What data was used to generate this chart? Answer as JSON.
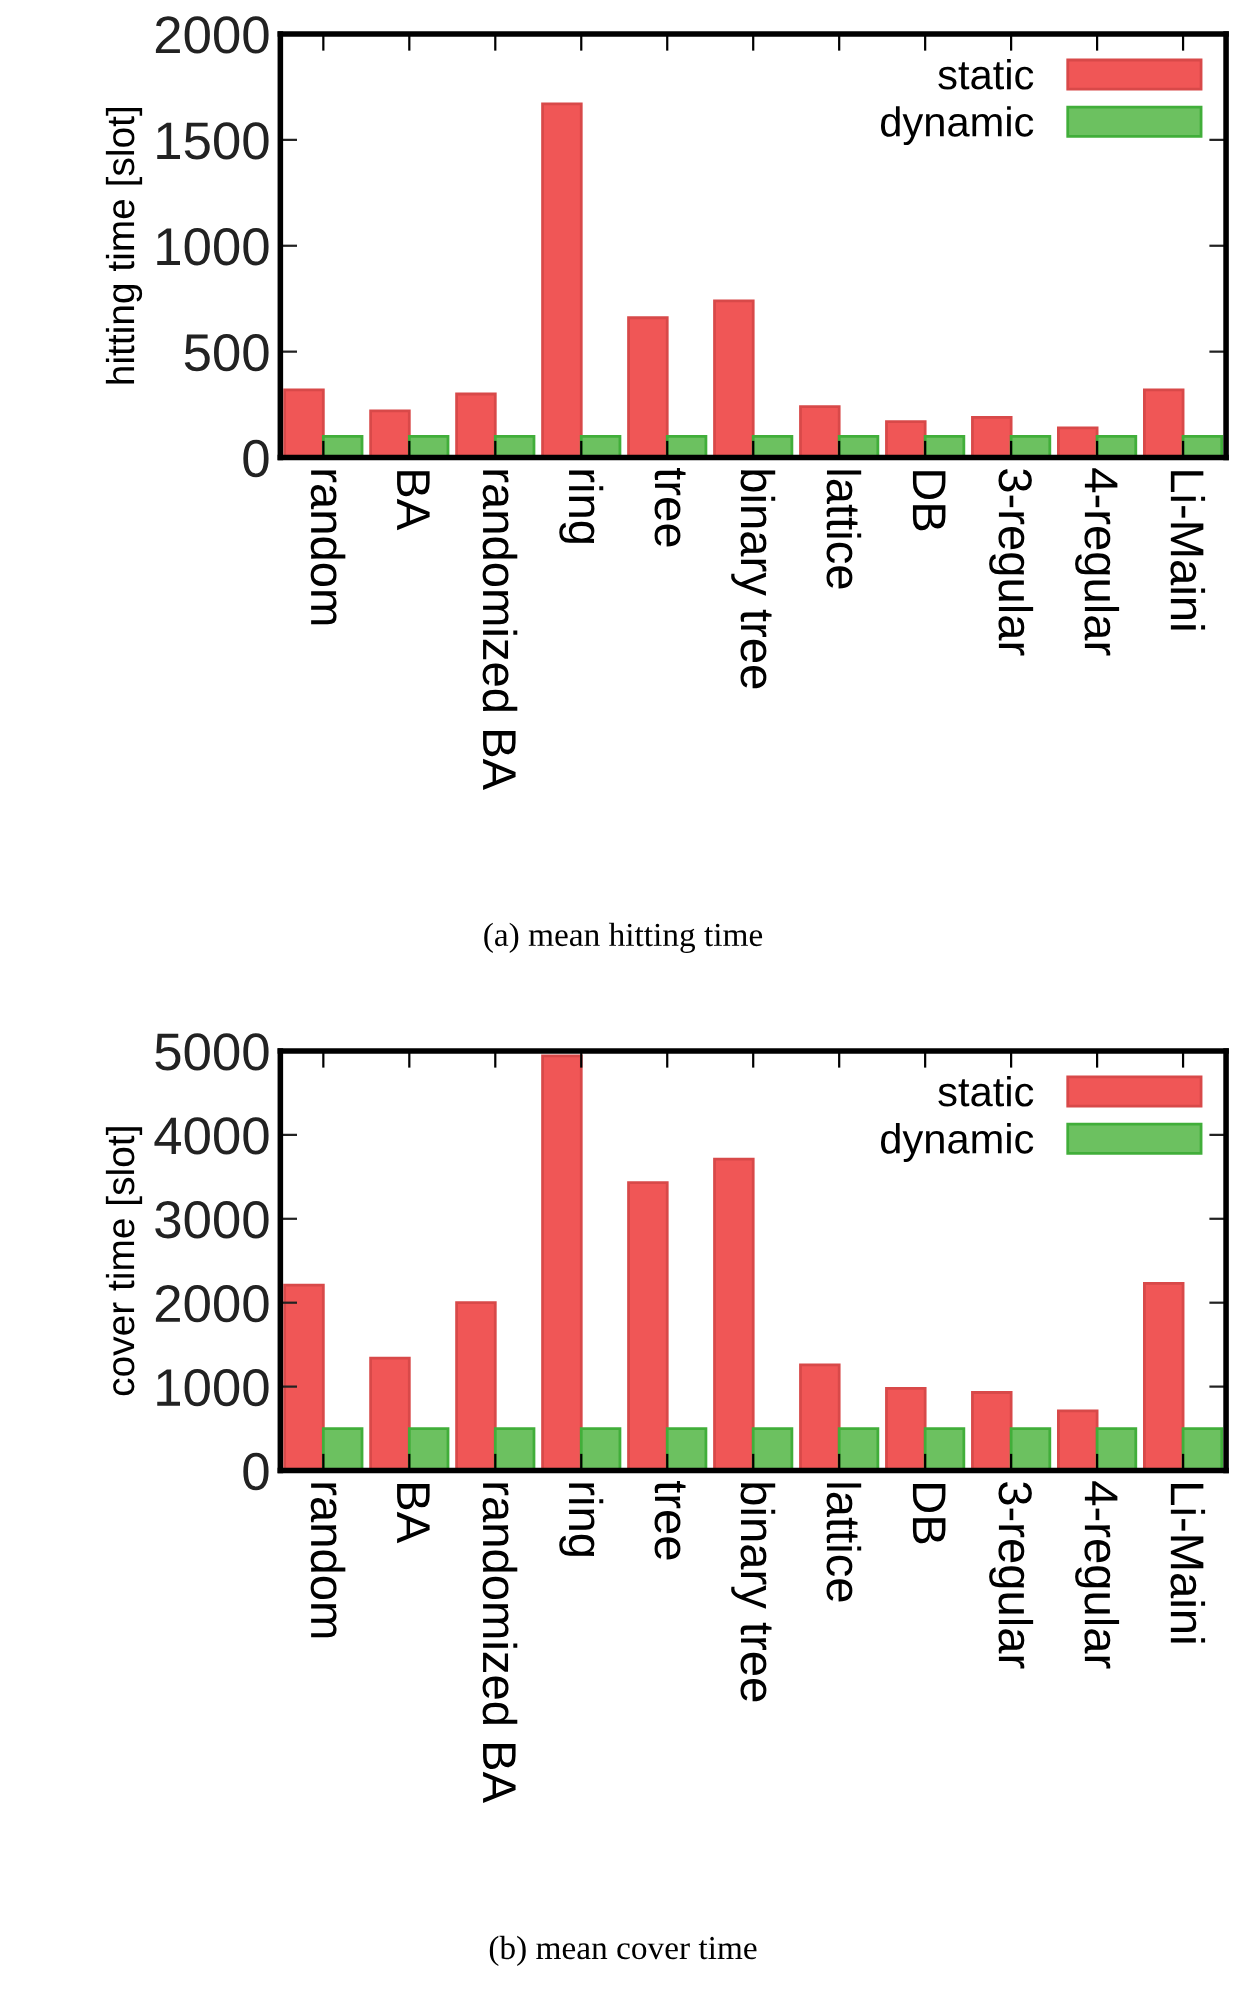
{
  "chart_data": [
    {
      "type": "bar",
      "ylabel": "hitting time [slot]",
      "categories": [
        "random",
        "BA",
        "randomized BA",
        "ring",
        "tree",
        "binary tree",
        "lattice",
        "DB",
        "3-regular",
        "4-regular",
        "Li-Maini"
      ],
      "series": [
        {
          "name": "static",
          "color": "#f05656",
          "values": [
            320,
            220,
            300,
            1670,
            660,
            740,
            240,
            170,
            190,
            140,
            320
          ]
        },
        {
          "name": "dynamic",
          "color": "#6cc160",
          "values": [
            100,
            100,
            100,
            100,
            100,
            100,
            100,
            100,
            100,
            100,
            100
          ]
        }
      ],
      "ylim": [
        0,
        2000
      ],
      "yticks": [
        0,
        500,
        1000,
        1500,
        2000
      ],
      "legend": "top right",
      "grid": false,
      "annotations": [
        "(a) mean hitting time"
      ]
    },
    {
      "type": "bar",
      "ylabel": "cover time [slot]",
      "categories": [
        "random",
        "BA",
        "randomized BA",
        "ring",
        "tree",
        "binary tree",
        "lattice",
        "DB",
        "3-regular",
        "4-regular",
        "Li-Maini"
      ],
      "series": [
        {
          "name": "static",
          "color": "#f05656",
          "values": [
            2210,
            1340,
            2000,
            4940,
            3430,
            3710,
            1260,
            980,
            930,
            710,
            2230
          ]
        },
        {
          "name": "dynamic",
          "color": "#6cc160",
          "values": [
            500,
            500,
            500,
            500,
            500,
            500,
            500,
            500,
            500,
            500,
            500
          ]
        }
      ],
      "ylim": [
        0,
        5000
      ],
      "yticks": [
        0,
        1000,
        2000,
        3000,
        4000,
        5000
      ],
      "legend": "top right",
      "grid": false,
      "annotations": [
        "(b) mean cover time"
      ]
    }
  ]
}
